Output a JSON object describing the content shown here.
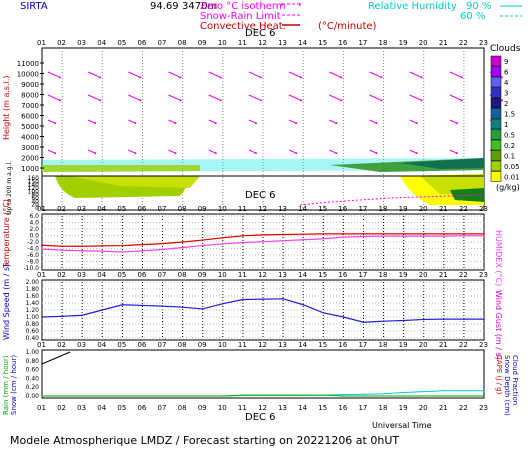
{
  "header": {
    "station": "SIRTA",
    "coords": "94.69",
    "coords_suffix": "3470m",
    "legend": [
      {
        "label": "Zero °C isotherm",
        "color": "#ff00ff"
      },
      {
        "label": "Snow-Rain Limit",
        "color": "#ff00ff"
      },
      {
        "label": "Convective Heat.",
        "color": "#cc0000"
      }
    ],
    "conv_unit": "(°C/minute)",
    "rh_label": "Relative Humidity",
    "rh_values": [
      "90 %",
      "60 %"
    ],
    "rh_color": "#00e0e0"
  },
  "footer": {
    "title": "Modele Atmospherique LMDZ / Forecast starting on 20221206 at 0hUT",
    "universal_time": "Universal Time"
  },
  "hours": [
    "01",
    "02",
    "03",
    "04",
    "05",
    "06",
    "07",
    "08",
    "09",
    "10",
    "11",
    "12",
    "13",
    "14",
    "15",
    "16",
    "17",
    "18",
    "19",
    "20",
    "21",
    "22",
    "23"
  ],
  "day_label": "DEC 6",
  "clouds_legend": {
    "title": "Clouds",
    "unit": "(g/kg)",
    "levels": [
      {
        "label": "9",
        "color": "#cc00cc"
      },
      {
        "label": "6",
        "color": "#a000ff"
      },
      {
        "label": "4",
        "color": "#6060ff"
      },
      {
        "label": "3",
        "color": "#3030c0"
      },
      {
        "label": "2",
        "color": "#1a1a80"
      },
      {
        "label": "1.5",
        "color": "#1060a0"
      },
      {
        "label": "1",
        "color": "#108080"
      },
      {
        "label": "0.5",
        "color": "#20a040"
      },
      {
        "label": "0.2",
        "color": "#40c020"
      },
      {
        "label": "0.1",
        "color": "#60a000"
      },
      {
        "label": "0.05",
        "color": "#a0d000"
      },
      {
        "label": "0.01",
        "color": "#ffff00"
      }
    ]
  },
  "chart_data": [
    {
      "type": "heatmap",
      "title": "Height profile",
      "ylabel": "Height (m a.s.l.)",
      "ylabel_low": "Up to 200 m a.g.l.",
      "yticks_upper": [
        "11000",
        "10000",
        "9000",
        "8000",
        "7000",
        "6000",
        "5000",
        "4000",
        "3000",
        "2000",
        "1000"
      ],
      "yticks_lower": [
        "160",
        "150",
        "140",
        "120",
        "100",
        "80",
        "60",
        "40",
        "20",
        "0"
      ]
    },
    {
      "type": "line",
      "ylabel": "Temperature (°C)",
      "ylabel_right": "HUMIDEX (°C)",
      "yticks": [
        "6.0",
        "4.0",
        "2.0",
        "0.0",
        "-2.0",
        "-4.0",
        "-6.0",
        "-8.0",
        "-10.0"
      ],
      "ylim": [
        -10,
        6
      ],
      "series": [
        {
          "name": "Temperature",
          "color": "#dd0000",
          "values": [
            -3.0,
            -3.3,
            -3.3,
            -3.2,
            -3.1,
            -2.8,
            -2.5,
            -2.0,
            -1.4,
            -0.7,
            -0.1,
            0.2,
            0.3,
            0.4,
            0.5,
            0.5,
            0.5,
            0.5,
            0.5,
            0.5,
            0.5,
            0.5,
            0.5
          ]
        },
        {
          "name": "HUMIDEX",
          "color": "#ee44ee",
          "values": [
            -4.2,
            -4.5,
            -4.7,
            -4.8,
            -5.1,
            -4.7,
            -4.3,
            -3.7,
            -3.1,
            -2.6,
            -2.2,
            -1.9,
            -1.6,
            -1.3,
            -1.0,
            -0.5,
            -0.3,
            -0.2,
            -0.2,
            -0.2,
            -0.2,
            -0.1,
            -0.1
          ]
        }
      ]
    },
    {
      "type": "line",
      "ylabel": "Wind Speed (m / s)",
      "ylabel_right": "Wind Gust (m / s)",
      "yticks": [
        "2.00",
        "1.80",
        "1.60",
        "1.40",
        "1.20",
        "1.00",
        "0.80",
        "0.60",
        "0.40"
      ],
      "ylim": [
        0.4,
        2.0
      ],
      "series": [
        {
          "name": "Wind Speed",
          "color": "#2020cc",
          "values": [
            1.0,
            1.02,
            1.05,
            1.2,
            1.35,
            1.33,
            1.31,
            1.28,
            1.23,
            1.38,
            1.5,
            1.51,
            1.52,
            1.35,
            1.12,
            1.0,
            0.85,
            0.88,
            0.9,
            0.93,
            0.94,
            0.94,
            0.94
          ]
        }
      ]
    },
    {
      "type": "bar",
      "ylabel": "Rain (mm / hour)",
      "ylabel2": "Snow (cm / hour)",
      "ylabel_right": "CAPE (J / g)",
      "ylabel_right2": "Snow Depth (cm)",
      "ylabel_right3": "Cloud Fraction",
      "yticks": [
        "1.00",
        "0.80",
        "0.60",
        "0.40",
        "0.20",
        "0.00"
      ],
      "ylim": [
        0,
        1.0
      ],
      "series": [
        {
          "name": "Cloud Fraction",
          "color": "#00cccc",
          "values": [
            0,
            0,
            0,
            0,
            0,
            0,
            0,
            0,
            0,
            0,
            0.01,
            0.01,
            0.01,
            0.01,
            0.02,
            0.03,
            0.04,
            0.05,
            0.08,
            0.1,
            0.12,
            0.12,
            0.12
          ]
        },
        {
          "name": "Rain",
          "color": "#00aa00",
          "values": [
            0,
            0,
            0,
            0,
            0,
            0,
            0,
            0,
            0,
            0,
            0.02,
            0.02,
            0.02,
            0.02,
            0.02,
            0,
            0,
            0,
            0,
            0,
            0,
            0,
            0
          ]
        }
      ]
    }
  ]
}
